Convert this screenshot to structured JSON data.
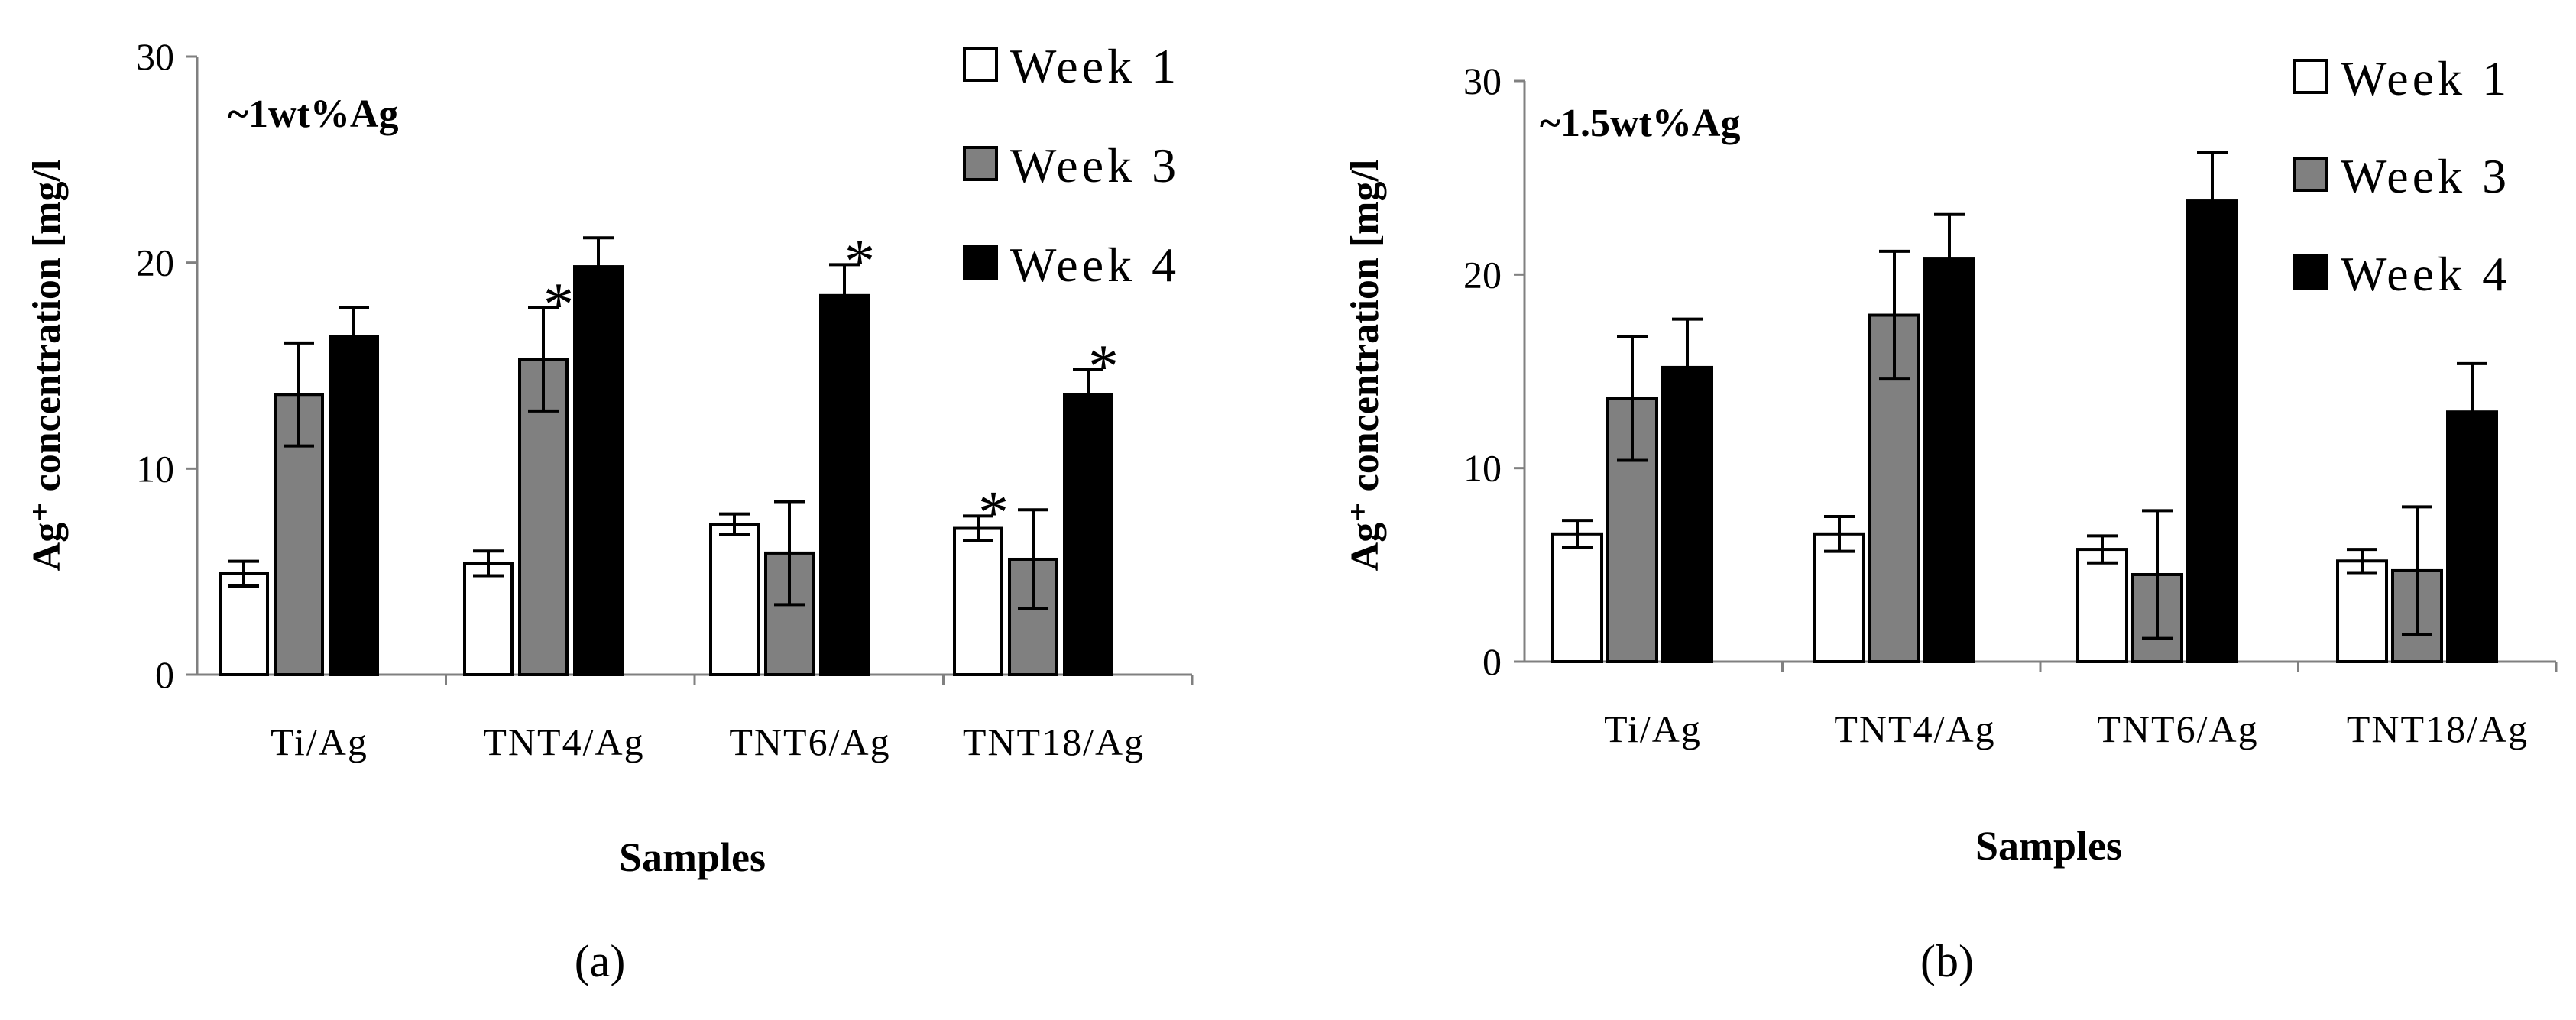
{
  "chart_data": [
    {
      "type": "bar",
      "panel_label": "(a)",
      "annotation": "~1wt%Ag",
      "title": "",
      "xlabel": "Samples",
      "ylabel": "Ag⁺ concentration [mg/l",
      "ylim": [
        0,
        30
      ],
      "yticks": [
        "0",
        "10",
        "20",
        "30"
      ],
      "categories": [
        "Ti/Ag",
        "TNT4/Ag",
        "TNT6/Ag",
        "TNT18/Ag"
      ],
      "legend_position": "top-right",
      "series": [
        {
          "name": "Week 1",
          "color": "#ffffff",
          "values": [
            4.9,
            5.4,
            7.3,
            7.1
          ],
          "errors": [
            0.6,
            0.6,
            0.5,
            0.6
          ],
          "significant": [
            false,
            false,
            false,
            true
          ]
        },
        {
          "name": "Week 3",
          "color": "#808080",
          "values": [
            13.6,
            15.3,
            5.9,
            5.6
          ],
          "errors": [
            2.5,
            2.5,
            2.5,
            2.4
          ],
          "significant": [
            false,
            true,
            false,
            false
          ]
        },
        {
          "name": "Week 4",
          "color": "#000000",
          "values": [
            16.4,
            19.8,
            18.4,
            13.6
          ],
          "errors": [
            1.4,
            1.4,
            1.5,
            1.2
          ],
          "significant": [
            false,
            false,
            true,
            true
          ]
        }
      ]
    },
    {
      "type": "bar",
      "panel_label": "(b)",
      "annotation": "~1.5wt%Ag",
      "title": "",
      "xlabel": "Samples",
      "ylabel": "Ag⁺ concentration [mg/l",
      "ylim": [
        0,
        30
      ],
      "yticks": [
        "0",
        "10",
        "20",
        "30"
      ],
      "categories": [
        "Ti/Ag",
        "TNT4/Ag",
        "TNT6/Ag",
        "TNT18/Ag"
      ],
      "legend_position": "top-right",
      "series": [
        {
          "name": "Week 1",
          "color": "#ffffff",
          "values": [
            6.6,
            6.6,
            5.8,
            5.2
          ],
          "errors": [
            0.7,
            0.9,
            0.7,
            0.6
          ],
          "significant": [
            false,
            false,
            false,
            false
          ]
        },
        {
          "name": "Week 3",
          "color": "#808080",
          "values": [
            13.6,
            17.9,
            4.5,
            4.7
          ],
          "errors": [
            3.2,
            3.3,
            3.3,
            3.3
          ],
          "significant": [
            false,
            false,
            false,
            false
          ]
        },
        {
          "name": "Week 4",
          "color": "#000000",
          "values": [
            15.2,
            20.8,
            23.8,
            12.9
          ],
          "errors": [
            2.5,
            2.3,
            2.5,
            2.5
          ],
          "significant": [
            false,
            false,
            false,
            false
          ]
        }
      ]
    }
  ]
}
